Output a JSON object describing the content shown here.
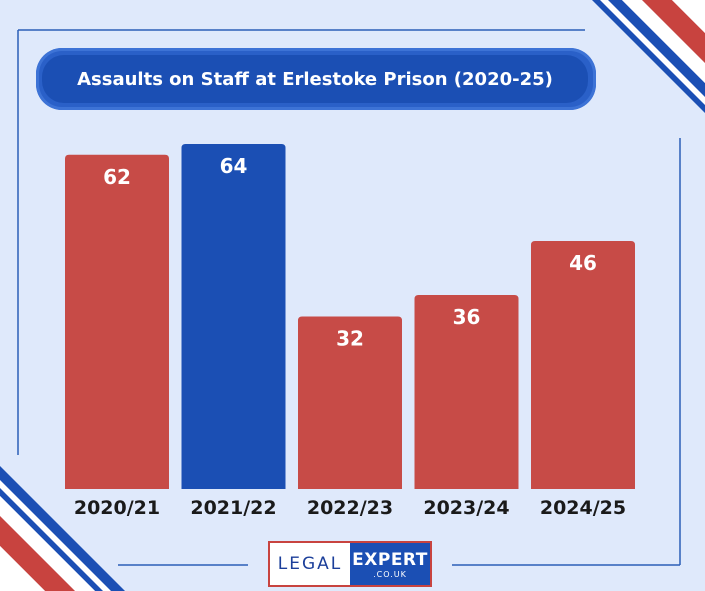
{
  "title": "Assaults on Staff at Erlestoke Prison (2020-25)",
  "logo": {
    "left": "LEGAL",
    "right": "EXPERT",
    "domain": ".CO.UK"
  },
  "colors": {
    "background": "#dfe9fb",
    "bar_default": "#c74b47",
    "bar_highlight": "#1b4fb4",
    "title_bg": "#1b4fb4",
    "accent_red": "#c8433f"
  },
  "chart_data": {
    "type": "bar",
    "title": "Assaults on Staff at Erlestoke Prison (2020-25)",
    "categories": [
      "2020/21",
      "2021/22",
      "2022/23",
      "2023/24",
      "2024/25"
    ],
    "values": [
      62,
      64,
      32,
      36,
      46
    ],
    "highlight_index": 1,
    "ylim": [
      0,
      64
    ],
    "grid": false,
    "xlabel": "",
    "ylabel": ""
  }
}
